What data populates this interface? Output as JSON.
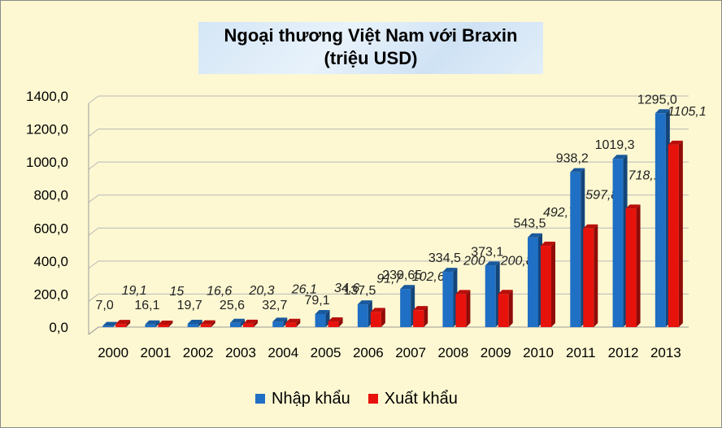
{
  "chart_data": {
    "type": "bar",
    "title": "Ngoại thương Việt Nam với Braxin",
    "subtitle": "(triệu USD)",
    "categories": [
      "2000",
      "2001",
      "2002",
      "2003",
      "2004",
      "2005",
      "2006",
      "2007",
      "2008",
      "2009",
      "2010",
      "2011",
      "2012",
      "2013"
    ],
    "series": [
      {
        "name": "Nhập khẩu",
        "color": "#1f6fc4",
        "values": [
          7.0,
          16.1,
          19.7,
          25.6,
          32.7,
          79.1,
          137.5,
          230.65,
          334.5,
          373.1,
          543.5,
          938.2,
          1019.3,
          1295.0
        ],
        "labels": [
          "7,0",
          "16,1",
          "19,7",
          "25,6",
          "32,7",
          "79,1",
          "137,5",
          "230,65",
          "334,5",
          "373,1",
          "543,5",
          "938,2",
          "1019,3",
          "1295,0"
        ]
      },
      {
        "name": "Xuất khẩu",
        "color": "#e8120c",
        "values": [
          19.1,
          15,
          16.6,
          20.3,
          26.1,
          34.6,
          91.7,
          102.62,
          200,
          200.8,
          492.7,
          597.8,
          718.1,
          1105.1
        ],
        "labels": [
          "19,1",
          "15",
          "16,6",
          "20,3",
          "26,1",
          "34,6",
          "91,7",
          "102,62",
          "200",
          "200,8",
          "492,7",
          "597,8",
          "718,1",
          "1105,1"
        ]
      }
    ],
    "ylim": [
      0,
      1400
    ],
    "yticks": [
      "0,0",
      "200,0",
      "400,0",
      "600,0",
      "800,0",
      "1000,0",
      "1200,0",
      "1400,0"
    ],
    "grid": true,
    "legend_position": "bottom"
  }
}
